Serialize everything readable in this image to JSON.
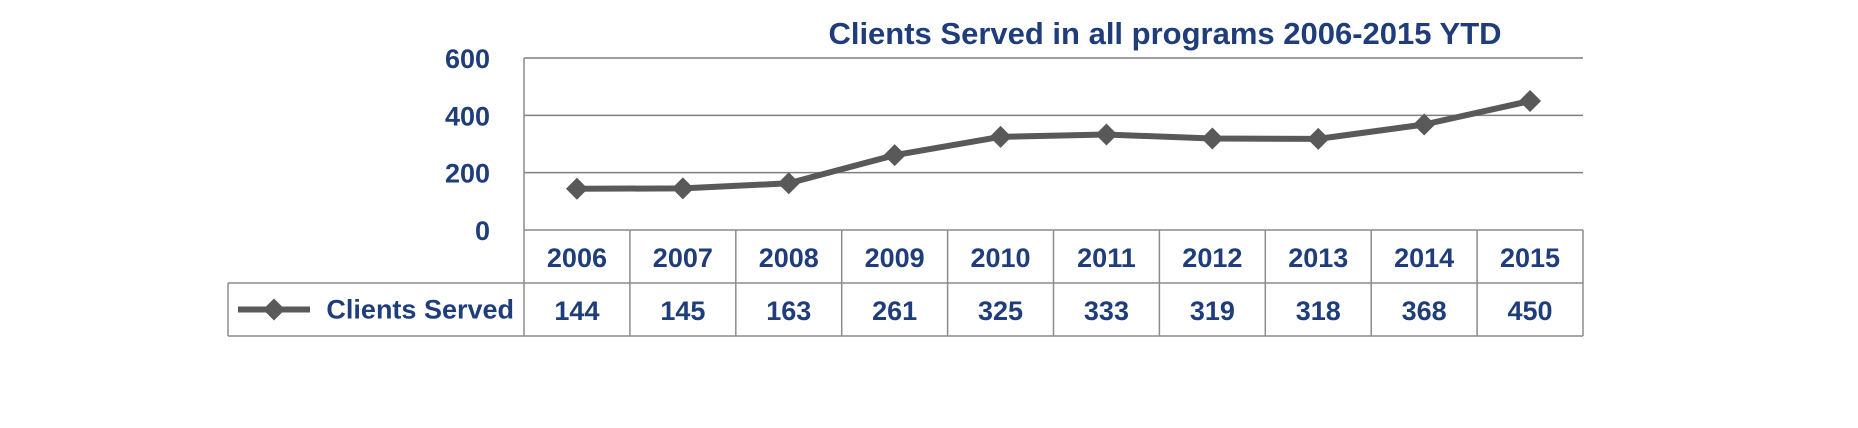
{
  "colors": {
    "text": "#1F3D7A",
    "series": "#595959",
    "grid": "#7F7F7F",
    "table_border": "#8C8C8C"
  },
  "chart_data": {
    "type": "line",
    "title": "Clients Served in all programs 2006-2015 YTD",
    "xlabel": "",
    "ylabel": "",
    "categories": [
      "2006",
      "2007",
      "2008",
      "2009",
      "2010",
      "2011",
      "2012",
      "2013",
      "2014",
      "2015"
    ],
    "series": [
      {
        "name": "Clients Served",
        "marker": "diamond",
        "values": [
          144,
          145,
          163,
          261,
          325,
          333,
          319,
          318,
          368,
          450
        ]
      }
    ],
    "ylim": [
      0,
      600
    ],
    "yticks": [
      "0",
      "200",
      "400",
      "600"
    ],
    "grid": true,
    "legend": "data-table-left",
    "data_table": true
  }
}
